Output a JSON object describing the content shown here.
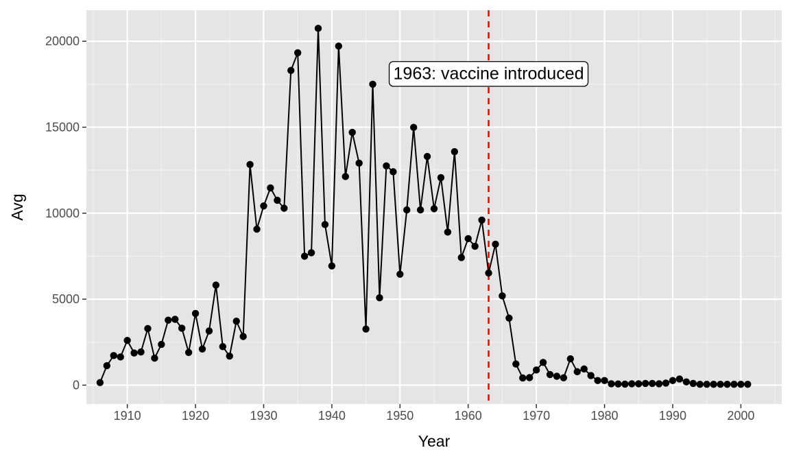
{
  "chart_data": {
    "type": "line",
    "xlabel": "Year",
    "ylabel": "Avg",
    "xlim": [
      1904,
      2006
    ],
    "ylim": [
      -1100,
      21800
    ],
    "x_ticks": [
      1910,
      1920,
      1930,
      1940,
      1950,
      1960,
      1970,
      1980,
      1990,
      2000
    ],
    "y_ticks": [
      0,
      5000,
      10000,
      15000,
      20000
    ],
    "grid": true,
    "panel_background": "#e5e5e5",
    "line_color": "#000000",
    "point_color": "#000000",
    "vline": {
      "x": 1963,
      "color": "#ff0000",
      "style": "dashed"
    },
    "annotation": {
      "x": 1963,
      "y": 18100,
      "text": "1963: vaccine introduced"
    },
    "series": [
      {
        "x": [
          1906,
          1907,
          1908,
          1909,
          1910,
          1911,
          1912,
          1913,
          1914,
          1915,
          1916,
          1917,
          1918,
          1919,
          1920,
          1921,
          1922,
          1923,
          1924,
          1925,
          1926,
          1927,
          1928,
          1929,
          1930,
          1931,
          1932,
          1933,
          1934,
          1935,
          1936,
          1937,
          1938,
          1939,
          1940,
          1941,
          1942,
          1943,
          1944,
          1945,
          1946,
          1947,
          1948,
          1949,
          1950,
          1951,
          1952,
          1953,
          1954,
          1955,
          1956,
          1957,
          1958,
          1959,
          1960,
          1961,
          1962,
          1963,
          1964,
          1965,
          1966,
          1967,
          1968,
          1969,
          1970,
          1971,
          1972,
          1973,
          1974,
          1975,
          1976,
          1977,
          1978,
          1979,
          1980,
          1981,
          1982,
          1983,
          1984,
          1985,
          1986,
          1987,
          1988,
          1989,
          1990,
          1991,
          1992,
          1993,
          1994,
          1995,
          1996,
          1997,
          1998,
          1999,
          2000,
          2001
        ],
        "y": [
          150,
          1130,
          1720,
          1640,
          2600,
          1870,
          1930,
          3290,
          1570,
          2370,
          3780,
          3830,
          3310,
          1900,
          4170,
          2100,
          3150,
          5820,
          2240,
          1690,
          3720,
          2830,
          12830,
          9070,
          10420,
          11470,
          10750,
          10290,
          18300,
          19330,
          7500,
          7700,
          20750,
          9340,
          6930,
          19720,
          12130,
          14700,
          12910,
          3260,
          17500,
          5080,
          12750,
          12410,
          6450,
          10190,
          14990,
          10190,
          13300,
          10260,
          12070,
          8900,
          13580,
          7420,
          8520,
          8080,
          9600,
          6520,
          8200,
          5190,
          3900,
          1230,
          420,
          440,
          880,
          1320,
          620,
          520,
          430,
          1530,
          780,
          940,
          560,
          270,
          270,
          80,
          70,
          60,
          80,
          80,
          100,
          100,
          80,
          120,
          270,
          360,
          190,
          100,
          50,
          50,
          50,
          50,
          50,
          50,
          50,
          50
        ]
      }
    ]
  }
}
